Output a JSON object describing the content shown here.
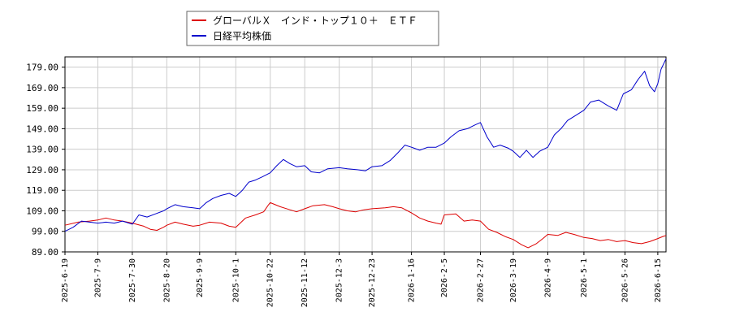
{
  "chart_data": {
    "type": "line",
    "title": "",
    "xlabel": "",
    "ylabel": "",
    "ylim": [
      89,
      184
    ],
    "y_ticks": [
      "89.00",
      "99.00",
      "109.00",
      "119.00",
      "129.00",
      "139.00",
      "149.00",
      "159.00",
      "169.00",
      "179.00"
    ],
    "y_tick_values": [
      89,
      99,
      109,
      119,
      129,
      139,
      149,
      159,
      169,
      179
    ],
    "x_ticks": [
      "2025-6-19",
      "2025-7-9",
      "2025-7-30",
      "2025-8-20",
      "2025-9-9",
      "2025-10-1",
      "2025-10-22",
      "2025-11-12",
      "2025-12-3",
      "2025-12-23",
      "2026-1-16",
      "2026-2-5",
      "2026-2-27",
      "2026-3-19",
      "2026-4-9",
      "2026-5-1",
      "2026-5-26",
      "2026-6-15"
    ],
    "x_tick_index": [
      0,
      20,
      41,
      62,
      82,
      104,
      125,
      146,
      167,
      187,
      211,
      231,
      253,
      273,
      294,
      316,
      341,
      361
    ],
    "x_max_index": 366,
    "grid": true,
    "legend_position": "top-center",
    "series": [
      {
        "name": "グローバルＸ　インド・トップ１０＋　ＥＴＦ",
        "color": "#dd0000",
        "points": [
          [
            0,
            102
          ],
          [
            8,
            103.5
          ],
          [
            15,
            104
          ],
          [
            20,
            104.5
          ],
          [
            25,
            105.5
          ],
          [
            30,
            104.5
          ],
          [
            35,
            104
          ],
          [
            41,
            103
          ],
          [
            48,
            101.5
          ],
          [
            52,
            100
          ],
          [
            56,
            99.5
          ],
          [
            60,
            101
          ],
          [
            62,
            102
          ],
          [
            67,
            103.5
          ],
          [
            72,
            102.5
          ],
          [
            78,
            101.5
          ],
          [
            82,
            102
          ],
          [
            88,
            103.5
          ],
          [
            95,
            103
          ],
          [
            100,
            101.5
          ],
          [
            104,
            101
          ],
          [
            110,
            105.5
          ],
          [
            116,
            107
          ],
          [
            121,
            108.5
          ],
          [
            124,
            112
          ],
          [
            125,
            113
          ],
          [
            131,
            111
          ],
          [
            137,
            109.5
          ],
          [
            141,
            108.5
          ],
          [
            146,
            110
          ],
          [
            151,
            111.5
          ],
          [
            158,
            112
          ],
          [
            163,
            111
          ],
          [
            167,
            110
          ],
          [
            172,
            109
          ],
          [
            177,
            108.5
          ],
          [
            182,
            109.5
          ],
          [
            187,
            110
          ],
          [
            195,
            110.5
          ],
          [
            200,
            111
          ],
          [
            205,
            110.5
          ],
          [
            211,
            108
          ],
          [
            216,
            105.5
          ],
          [
            221,
            104
          ],
          [
            226,
            103
          ],
          [
            229,
            102.5
          ],
          [
            231,
            107
          ],
          [
            238,
            107.5
          ],
          [
            243,
            104
          ],
          [
            248,
            104.5
          ],
          [
            253,
            104
          ],
          [
            258,
            100
          ],
          [
            263,
            98.5
          ],
          [
            268,
            96.5
          ],
          [
            273,
            95
          ],
          [
            278,
            92.5
          ],
          [
            282,
            91
          ],
          [
            287,
            93
          ],
          [
            291,
            95.5
          ],
          [
            294,
            97.5
          ],
          [
            300,
            97
          ],
          [
            305,
            98.5
          ],
          [
            310,
            97.5
          ],
          [
            316,
            96
          ],
          [
            321,
            95.5
          ],
          [
            326,
            94.5
          ],
          [
            331,
            95
          ],
          [
            336,
            94
          ],
          [
            341,
            94.5
          ],
          [
            346,
            93.5
          ],
          [
            351,
            93
          ],
          [
            356,
            94
          ],
          [
            361,
            95.5
          ],
          [
            364,
            96.5
          ],
          [
            366,
            97
          ]
        ]
      },
      {
        "name": "日経平均株価",
        "color": "#0000cc",
        "points": [
          [
            0,
            99
          ],
          [
            5,
            101
          ],
          [
            10,
            104
          ],
          [
            15,
            103.5
          ],
          [
            20,
            103
          ],
          [
            25,
            103.5
          ],
          [
            30,
            103
          ],
          [
            35,
            104
          ],
          [
            41,
            102.5
          ],
          [
            45,
            107
          ],
          [
            50,
            106
          ],
          [
            55,
            107.5
          ],
          [
            60,
            109
          ],
          [
            62,
            110
          ],
          [
            67,
            112
          ],
          [
            72,
            111
          ],
          [
            78,
            110.5
          ],
          [
            82,
            110
          ],
          [
            86,
            113
          ],
          [
            90,
            115
          ],
          [
            95,
            116.5
          ],
          [
            100,
            117.5
          ],
          [
            104,
            116
          ],
          [
            108,
            119
          ],
          [
            112,
            123
          ],
          [
            116,
            124
          ],
          [
            120,
            125.5
          ],
          [
            125,
            127.5
          ],
          [
            129,
            131
          ],
          [
            133,
            134
          ],
          [
            137,
            132
          ],
          [
            141,
            130.5
          ],
          [
            146,
            131
          ],
          [
            150,
            128
          ],
          [
            155,
            127.5
          ],
          [
            160,
            129.5
          ],
          [
            167,
            130
          ],
          [
            172,
            129.5
          ],
          [
            178,
            129
          ],
          [
            183,
            128.5
          ],
          [
            187,
            130.5
          ],
          [
            193,
            131
          ],
          [
            198,
            133.5
          ],
          [
            203,
            137.5
          ],
          [
            207,
            141
          ],
          [
            211,
            140
          ],
          [
            216,
            138.5
          ],
          [
            221,
            140
          ],
          [
            226,
            140
          ],
          [
            231,
            142
          ],
          [
            235,
            145
          ],
          [
            240,
            148
          ],
          [
            245,
            149
          ],
          [
            250,
            151
          ],
          [
            253,
            152
          ],
          [
            257,
            145
          ],
          [
            261,
            140
          ],
          [
            265,
            141
          ],
          [
            270,
            139.5
          ],
          [
            273,
            138
          ],
          [
            277,
            135
          ],
          [
            281,
            138.5
          ],
          [
            285,
            135
          ],
          [
            289,
            138
          ],
          [
            294,
            140
          ],
          [
            298,
            146
          ],
          [
            302,
            149
          ],
          [
            306,
            153
          ],
          [
            310,
            155
          ],
          [
            316,
            158
          ],
          [
            320,
            162
          ],
          [
            325,
            163
          ],
          [
            331,
            160
          ],
          [
            336,
            158
          ],
          [
            340,
            166
          ],
          [
            345,
            168
          ],
          [
            349,
            173
          ],
          [
            353,
            177
          ],
          [
            356,
            170
          ],
          [
            359,
            167
          ],
          [
            361,
            171
          ],
          [
            363,
            178
          ],
          [
            366,
            183
          ]
        ]
      }
    ]
  }
}
